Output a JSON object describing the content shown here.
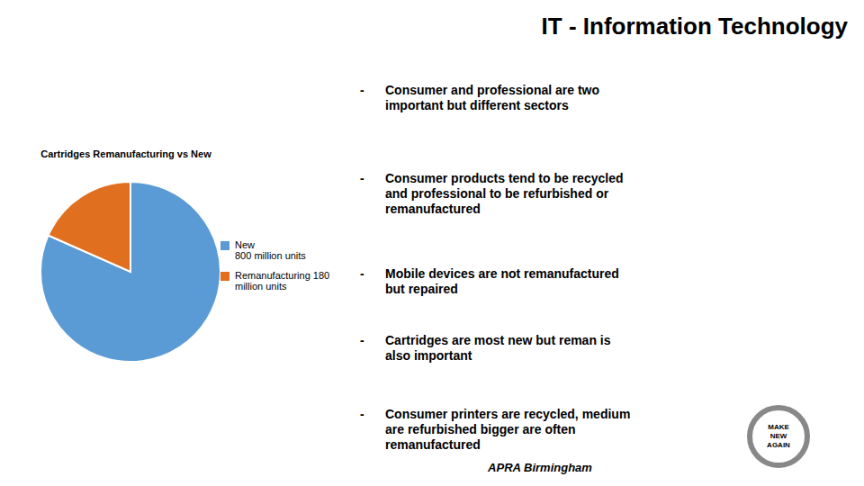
{
  "chart_data": {
    "type": "pie",
    "title": "Cartridges Remanufacturing vs New",
    "categories": [
      "New\n800 million units",
      "Remanufacturing 180\nmillion units"
    ],
    "values": [
      800,
      180
    ],
    "colors": [
      "#5b9bd5",
      "#e07020"
    ],
    "legend": "right",
    "annotations": [
      "IT - Information Technology",
      "Consumer and professional are two\nimportant but different sectors",
      "Consumer products tend to be recycled\nand professional to be refurbished or\nremanufactured",
      "Mobile devices are not remanufactured\nbut repaired",
      "Cartridges are most new but reman is\nalso important",
      "Consumer printers are recycled, medium\nare refurbished bigger are often\nremanufactured",
      "APRA Birmingham",
      "MAKE",
      "NEW",
      "AGAIN"
    ]
  }
}
